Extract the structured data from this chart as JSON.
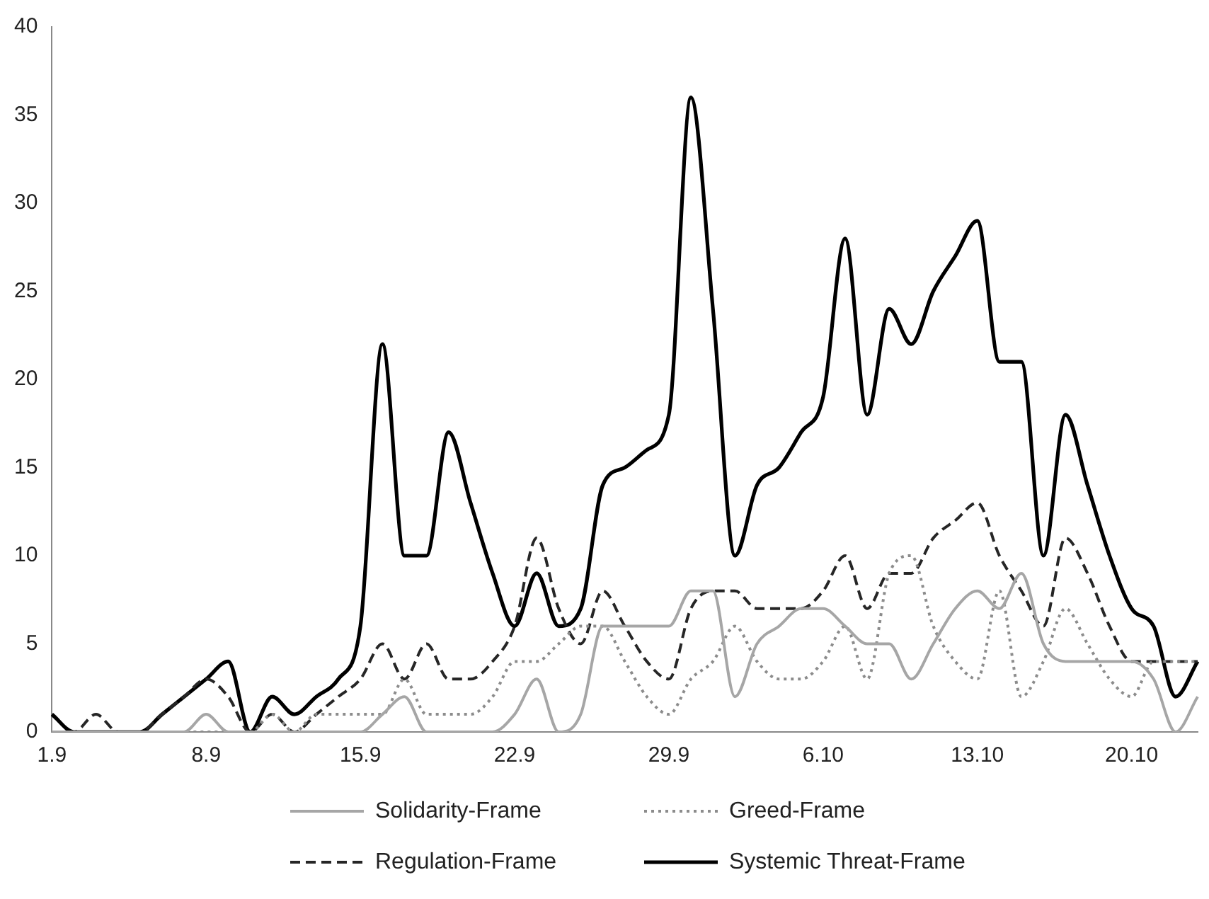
{
  "chart_data": {
    "type": "line",
    "categories": [
      "1.9",
      null,
      null,
      null,
      null,
      null,
      null,
      "8.9",
      null,
      null,
      null,
      null,
      null,
      null,
      "15.9",
      null,
      null,
      null,
      null,
      null,
      null,
      "22.9",
      null,
      null,
      null,
      null,
      null,
      null,
      "29.9",
      null,
      null,
      null,
      null,
      null,
      null,
      "6.10",
      null,
      null,
      null,
      null,
      null,
      null,
      "13.10",
      null,
      null,
      null,
      null,
      null,
      null,
      "20.10",
      null,
      null,
      null
    ],
    "series": [
      {
        "name": "Solidarity-Frame",
        "color": "#a6a6a6",
        "line_style": "solid",
        "values": [
          0,
          0,
          0,
          0,
          0,
          0,
          0,
          1,
          0,
          0,
          0,
          0,
          0,
          0,
          0,
          1,
          2,
          0,
          0,
          0,
          0,
          1,
          3,
          0,
          1,
          6,
          6,
          6,
          6,
          8,
          8,
          2,
          5,
          6,
          7,
          7,
          6,
          5,
          5,
          3,
          5,
          7,
          8,
          7,
          9,
          5,
          4,
          4,
          4,
          4,
          3,
          0,
          2
        ]
      },
      {
        "name": "Greed-Frame",
        "color": "#8c8c8c",
        "line_style": "dotted",
        "values": [
          0,
          0,
          0,
          0,
          0,
          0,
          0,
          0,
          0,
          0,
          1,
          0,
          1,
          1,
          1,
          1,
          3,
          1,
          1,
          1,
          2,
          4,
          4,
          5,
          6,
          6,
          4,
          2,
          1,
          3,
          4,
          6,
          4,
          3,
          3,
          4,
          6,
          3,
          9,
          10,
          6,
          4,
          3,
          8,
          2,
          4,
          7,
          5,
          3,
          2,
          4,
          4,
          4
        ]
      },
      {
        "name": "Regulation-Frame",
        "color": "#262626",
        "line_style": "dashed",
        "values": [
          0,
          0,
          1,
          0,
          0,
          1,
          2,
          3,
          2,
          0,
          1,
          0,
          1,
          2,
          3,
          5,
          3,
          5,
          3,
          3,
          4,
          6,
          11,
          7,
          5,
          8,
          6,
          4,
          3,
          7,
          8,
          8,
          7,
          7,
          7,
          8,
          10,
          7,
          9,
          9,
          11,
          12,
          13,
          10,
          8,
          6,
          11,
          9,
          6,
          4,
          4,
          4,
          4
        ]
      },
      {
        "name": "Systemic Threat-Frame",
        "color": "#000000",
        "line_style": "solid",
        "values": [
          1,
          0,
          0,
          0,
          0,
          1,
          2,
          3,
          4,
          0,
          2,
          1,
          2,
          3,
          6,
          22,
          10,
          10,
          17,
          13,
          9,
          6,
          9,
          6,
          7,
          14,
          15,
          16,
          18,
          36,
          24,
          10,
          14,
          15,
          17,
          19,
          28,
          18,
          24,
          22,
          25,
          27,
          29,
          21,
          21,
          10,
          18,
          14,
          10,
          7,
          6,
          2,
          4
        ]
      }
    ],
    "ylim": [
      0,
      40
    ],
    "yticks": [
      0,
      5,
      10,
      15,
      20,
      25,
      30,
      35,
      40
    ],
    "grid": false,
    "legend": "bottom"
  }
}
